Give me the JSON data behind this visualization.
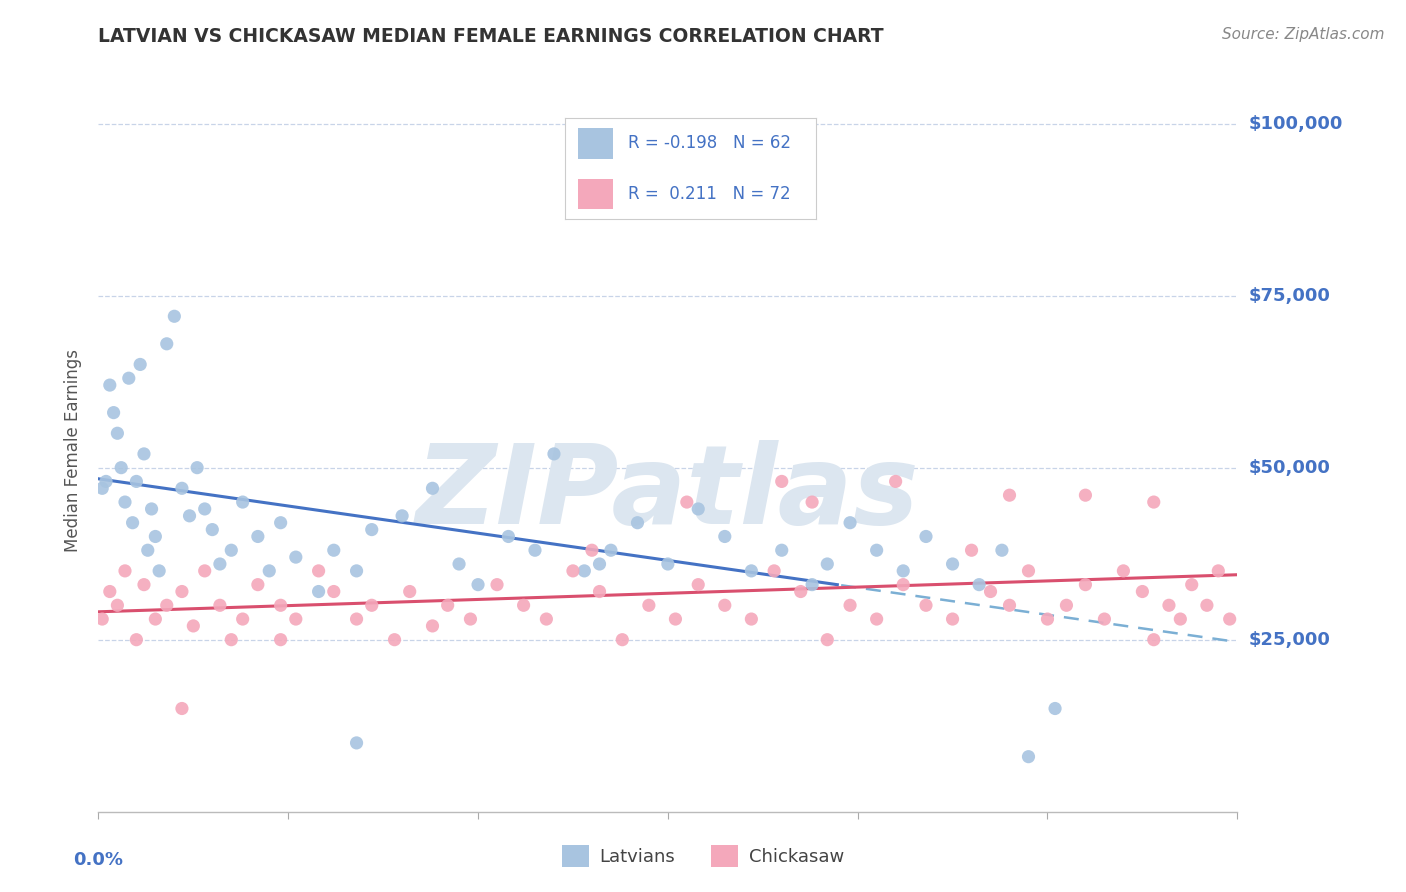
{
  "title": "LATVIAN VS CHICKASAW MEDIAN FEMALE EARNINGS CORRELATION CHART",
  "source": "Source: ZipAtlas.com",
  "ylabel": "Median Female Earnings",
  "xlim": [
    0.0,
    0.3
  ],
  "ylim": [
    0,
    105000
  ],
  "latvian_R": -0.198,
  "latvian_N": 62,
  "chickasaw_R": 0.211,
  "chickasaw_N": 72,
  "latvian_color": "#a8c4e0",
  "chickasaw_color": "#f4a8bb",
  "latvian_line_color": "#4472c4",
  "chickasaw_line_color": "#d94f6e",
  "dashed_line_color": "#7bafd4",
  "grid_color": "#c8d4e8",
  "background_color": "#ffffff",
  "watermark": "ZIPatlas",
  "watermark_color": "#dce6f0",
  "title_color": "#333333",
  "axis_label_color": "#4472c4",
  "legend_text_color": "#4472c4",
  "latvian_x": [
    0.001,
    0.002,
    0.003,
    0.004,
    0.005,
    0.006,
    0.007,
    0.008,
    0.009,
    0.01,
    0.011,
    0.012,
    0.013,
    0.014,
    0.015,
    0.016,
    0.018,
    0.02,
    0.022,
    0.024,
    0.026,
    0.028,
    0.03,
    0.032,
    0.035,
    0.038,
    0.042,
    0.045,
    0.048,
    0.052,
    0.058,
    0.062,
    0.068,
    0.072,
    0.08,
    0.088,
    0.095,
    0.1,
    0.108,
    0.115,
    0.12,
    0.128,
    0.135,
    0.142,
    0.15,
    0.158,
    0.165,
    0.172,
    0.18,
    0.188,
    0.192,
    0.198,
    0.205,
    0.212,
    0.218,
    0.225,
    0.232,
    0.238,
    0.245,
    0.252,
    0.132,
    0.068
  ],
  "latvian_y": [
    47000,
    48000,
    62000,
    58000,
    55000,
    50000,
    45000,
    63000,
    42000,
    48000,
    65000,
    52000,
    38000,
    44000,
    40000,
    35000,
    68000,
    72000,
    47000,
    43000,
    50000,
    44000,
    41000,
    36000,
    38000,
    45000,
    40000,
    35000,
    42000,
    37000,
    32000,
    38000,
    35000,
    41000,
    43000,
    47000,
    36000,
    33000,
    40000,
    38000,
    52000,
    35000,
    38000,
    42000,
    36000,
    44000,
    40000,
    35000,
    38000,
    33000,
    36000,
    42000,
    38000,
    35000,
    40000,
    36000,
    33000,
    38000,
    8000,
    15000,
    36000,
    10000
  ],
  "chickasaw_x": [
    0.001,
    0.003,
    0.005,
    0.007,
    0.01,
    0.012,
    0.015,
    0.018,
    0.022,
    0.025,
    0.028,
    0.032,
    0.035,
    0.038,
    0.042,
    0.048,
    0.052,
    0.058,
    0.062,
    0.068,
    0.072,
    0.078,
    0.082,
    0.088,
    0.092,
    0.098,
    0.105,
    0.112,
    0.118,
    0.125,
    0.132,
    0.138,
    0.145,
    0.152,
    0.158,
    0.165,
    0.172,
    0.178,
    0.185,
    0.192,
    0.198,
    0.205,
    0.212,
    0.218,
    0.225,
    0.23,
    0.235,
    0.24,
    0.245,
    0.25,
    0.255,
    0.26,
    0.265,
    0.27,
    0.275,
    0.278,
    0.282,
    0.285,
    0.288,
    0.292,
    0.295,
    0.298,
    0.022,
    0.18,
    0.21,
    0.048,
    0.13,
    0.155,
    0.188,
    0.24,
    0.26,
    0.278
  ],
  "chickasaw_y": [
    28000,
    32000,
    30000,
    35000,
    25000,
    33000,
    28000,
    30000,
    32000,
    27000,
    35000,
    30000,
    25000,
    28000,
    33000,
    30000,
    28000,
    35000,
    32000,
    28000,
    30000,
    25000,
    32000,
    27000,
    30000,
    28000,
    33000,
    30000,
    28000,
    35000,
    32000,
    25000,
    30000,
    28000,
    33000,
    30000,
    28000,
    35000,
    32000,
    25000,
    30000,
    28000,
    33000,
    30000,
    28000,
    38000,
    32000,
    30000,
    35000,
    28000,
    30000,
    33000,
    28000,
    35000,
    32000,
    25000,
    30000,
    28000,
    33000,
    30000,
    35000,
    28000,
    15000,
    48000,
    48000,
    25000,
    38000,
    45000,
    45000,
    46000,
    46000,
    45000
  ],
  "y_ticks": [
    25000,
    50000,
    75000,
    100000
  ],
  "y_tick_labels": [
    "$25,000",
    "$50,000",
    "$75,000",
    "$100,000"
  ]
}
